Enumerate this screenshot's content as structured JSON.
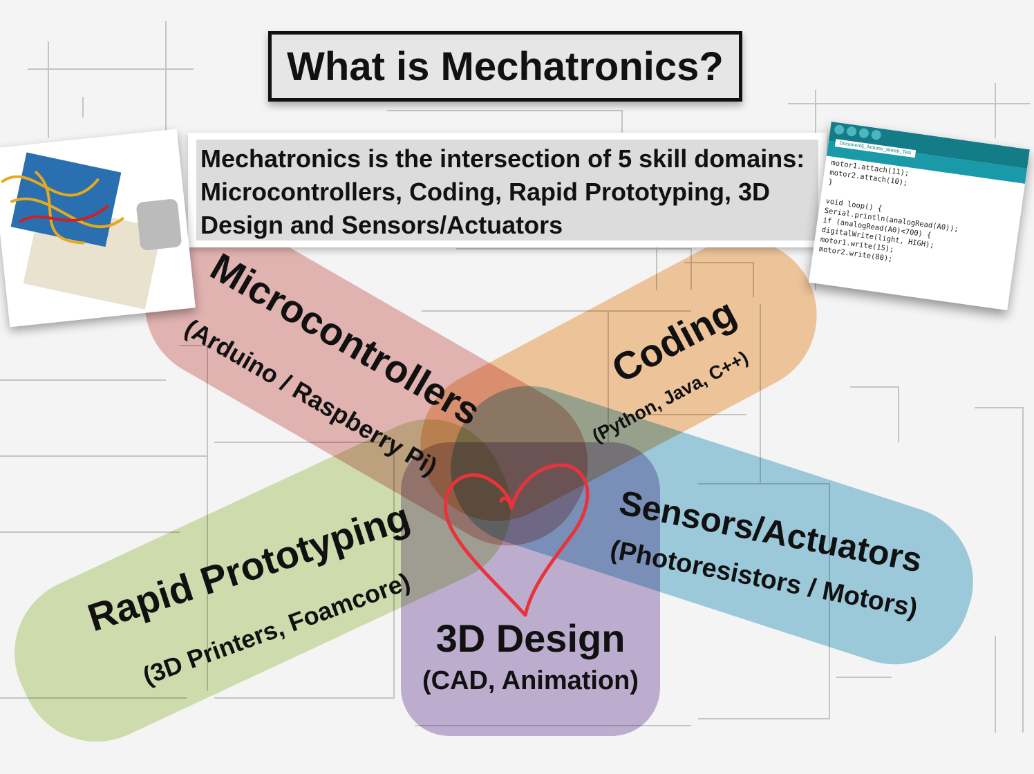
{
  "title": "What is Mechatronics?",
  "intro": "Mechatronics is the intersection of 5 skill domains: Microcontrollers, Coding, Rapid Prototyping, 3D Design and Sensors/Actuators",
  "domains": [
    {
      "name": "Microcontrollers",
      "examples": "(Arduino / Raspberry Pi)",
      "color": "#e6a9a6"
    },
    {
      "name": "Coding",
      "examples": "(Python, Java, C++)",
      "color": "#f6bf8a"
    },
    {
      "name": "Sensors/Actuators",
      "examples": "(Photoresistors / Motors)",
      "color": "#8cc7dd"
    },
    {
      "name": "Rapid Prototyping",
      "examples": "(3D Printers, Foamcore)",
      "color": "#cfe0a2"
    },
    {
      "name": "3D Design",
      "examples": "(CAD, Animation)",
      "color": "#b7a3cf"
    }
  ],
  "heart_color": "#e8333a",
  "code_window": {
    "tab": "Document5_Arduino_sketch_Test",
    "lines": [
      "motor1.attach(11);",
      "motor2.attach(10);",
      "}",
      "",
      "void loop() {",
      "Serial.println(analogRead(A0));",
      "if (analogRead(A0)<700) {",
      "digitalWrite(light, HIGH);",
      "motor1.write(15);",
      "motor2.write(80);"
    ]
  }
}
